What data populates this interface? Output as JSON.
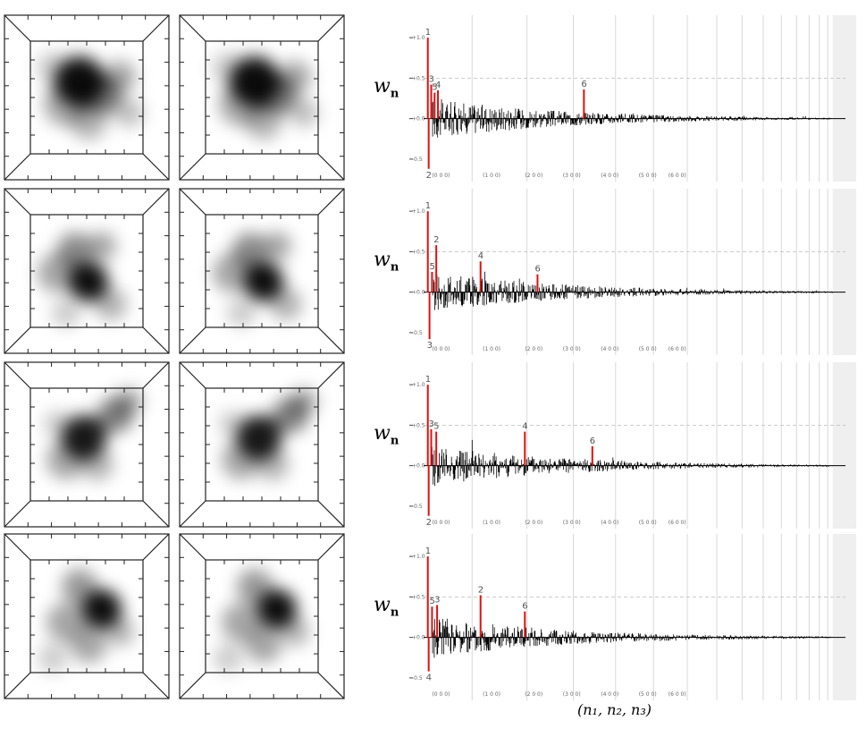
{
  "figure": {
    "w_label": "w",
    "w_subscript": "n",
    "x_axis_label": "(n₁, n₂, n₃)",
    "y_ticks": [
      "+1.0",
      "+0.5",
      "+0.0",
      "-0.5"
    ],
    "group_labels": [
      "(0 0 0)",
      "(1 0 0)",
      "(2 0 0)",
      "(3 0 0)",
      "(4 0 0)",
      "(5 0 0)",
      "(6 0 0)"
    ]
  },
  "chart_data": [
    {
      "type": "bar",
      "ylim": [
        -0.7,
        1.2
      ],
      "peaks": [
        {
          "label": "1",
          "x": 0.01,
          "y": 1.0,
          "color": "red"
        },
        {
          "label": "2",
          "x": 0.012,
          "y": -0.62,
          "color": "red"
        },
        {
          "label": "3",
          "x": 0.018,
          "y": 0.42,
          "color": "red"
        },
        {
          "label": "5",
          "x": 0.026,
          "y": 0.32,
          "color": "red"
        },
        {
          "label": "4",
          "x": 0.034,
          "y": 0.35,
          "color": "red"
        },
        {
          "label": "6",
          "x": 0.38,
          "y": 0.36,
          "color": "red"
        }
      ]
    },
    {
      "type": "bar",
      "ylim": [
        -0.7,
        1.2
      ],
      "peaks": [
        {
          "label": "1",
          "x": 0.01,
          "y": 1.0,
          "color": "red"
        },
        {
          "label": "3",
          "x": 0.014,
          "y": -0.58,
          "color": "red"
        },
        {
          "label": "5",
          "x": 0.02,
          "y": 0.25,
          "color": "red"
        },
        {
          "label": "2",
          "x": 0.03,
          "y": 0.58,
          "color": "red"
        },
        {
          "label": "4",
          "x": 0.135,
          "y": 0.38,
          "color": "red"
        },
        {
          "label": "6",
          "x": 0.27,
          "y": 0.22,
          "color": "red"
        }
      ]
    },
    {
      "type": "bar",
      "ylim": [
        -0.7,
        1.2
      ],
      "peaks": [
        {
          "label": "1",
          "x": 0.01,
          "y": 1.0,
          "color": "red"
        },
        {
          "label": "2",
          "x": 0.012,
          "y": -0.62,
          "color": "red"
        },
        {
          "label": "3",
          "x": 0.018,
          "y": 0.45,
          "color": "red"
        },
        {
          "label": "5",
          "x": 0.03,
          "y": 0.42,
          "color": "red"
        },
        {
          "label": "4",
          "x": 0.24,
          "y": 0.42,
          "color": "red"
        },
        {
          "label": "6",
          "x": 0.4,
          "y": 0.24,
          "color": "red"
        }
      ]
    },
    {
      "type": "bar",
      "ylim": [
        -0.7,
        1.2
      ],
      "peaks": [
        {
          "label": "1",
          "x": 0.01,
          "y": 1.0,
          "color": "red"
        },
        {
          "label": "4",
          "x": 0.012,
          "y": -0.42,
          "color": "red"
        },
        {
          "label": "5",
          "x": 0.02,
          "y": 0.38,
          "color": "red"
        },
        {
          "label": "3",
          "x": 0.032,
          "y": 0.4,
          "color": "red"
        },
        {
          "label": "2",
          "x": 0.135,
          "y": 0.52,
          "color": "red"
        },
        {
          "label": "6",
          "x": 0.24,
          "y": 0.32,
          "color": "red"
        }
      ]
    }
  ]
}
